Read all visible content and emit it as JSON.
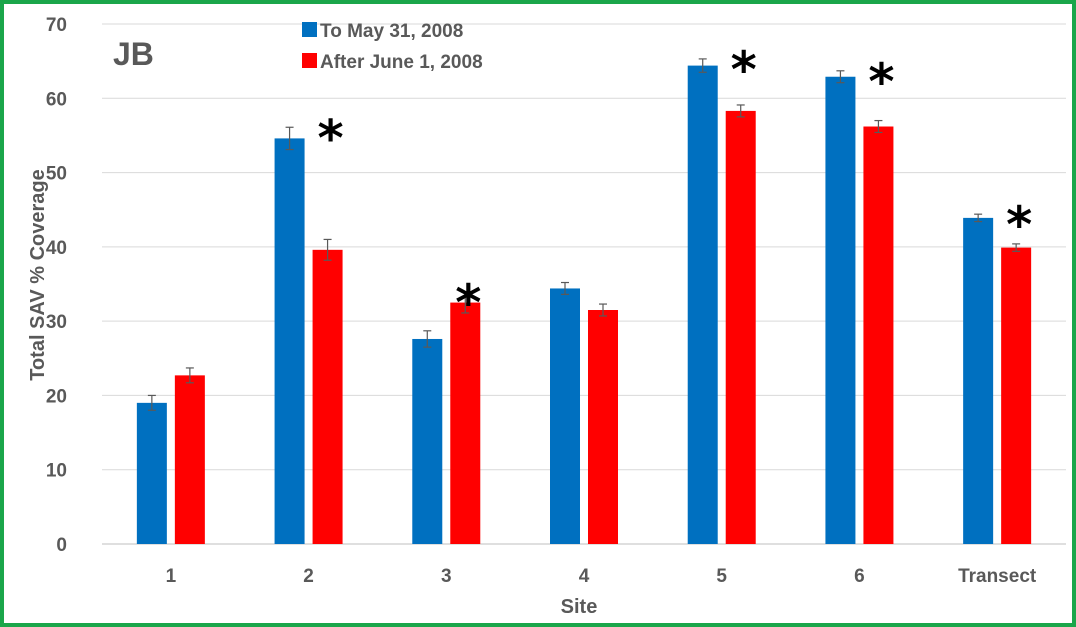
{
  "chart_data": {
    "type": "bar",
    "panel_label": "JB",
    "ylabel": "Total SAV % Coverage",
    "xlabel": "Site",
    "ylim": [
      0,
      70
    ],
    "yticks": [
      0,
      10,
      20,
      30,
      40,
      50,
      60,
      70
    ],
    "grid": true,
    "legend_position": "top-center",
    "categories": [
      "1",
      "2",
      "3",
      "4",
      "5",
      "6",
      "Transect"
    ],
    "series": [
      {
        "name": "To May 31, 2008",
        "color": "#0070c0",
        "values": [
          19.0,
          54.6,
          27.6,
          34.4,
          64.4,
          62.9,
          43.9
        ],
        "errors": [
          1.0,
          1.5,
          1.1,
          0.8,
          0.9,
          0.8,
          0.5
        ]
      },
      {
        "name": "After June 1, 2008",
        "color": "#ff0000",
        "values": [
          22.7,
          39.6,
          32.5,
          31.5,
          58.3,
          56.2,
          39.9
        ],
        "errors": [
          1.0,
          1.4,
          1.4,
          0.8,
          0.8,
          0.8,
          0.5
        ]
      }
    ],
    "significance_marker": "*",
    "significant_categories": [
      "2",
      "3",
      "5",
      "6",
      "Transect"
    ]
  }
}
